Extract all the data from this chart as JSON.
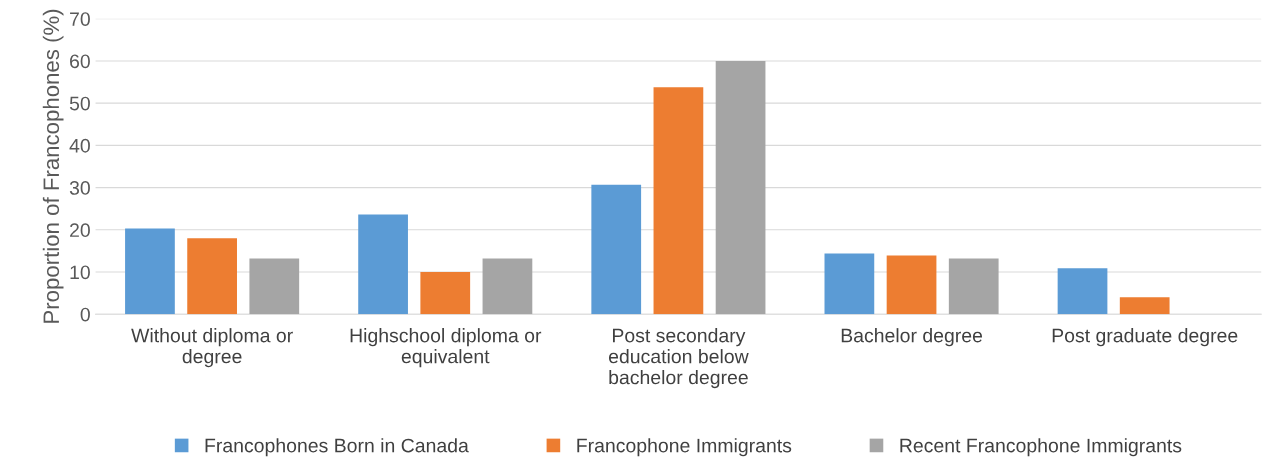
{
  "chart_data": {
    "type": "bar",
    "ylabel": "Proportion of Francophones (%)",
    "categories": [
      "Without diploma or\ndegree",
      "Highschool diploma or\nequivalent",
      "Post secondary\neducation below\nbachelor degree",
      "Bachelor degree",
      "Post graduate degree"
    ],
    "series": [
      {
        "name": "Francophones Born in Canada",
        "color": "#5b9bd5",
        "values": [
          20.3,
          23.6,
          30.7,
          14.4,
          10.9
        ]
      },
      {
        "name": "Francophone Immigrants",
        "color": "#ed7d31",
        "values": [
          18.0,
          10.0,
          53.8,
          13.9,
          4.0
        ]
      },
      {
        "name": "Recent Francophone Immigrants",
        "color": "#a5a5a5",
        "values": [
          13.2,
          13.2,
          60.0,
          13.2,
          null
        ]
      }
    ],
    "ylim": [
      0,
      70
    ],
    "yticks": [
      0,
      10,
      20,
      30,
      40,
      50,
      60,
      70
    ],
    "grid": "y",
    "legend": "bottom"
  }
}
